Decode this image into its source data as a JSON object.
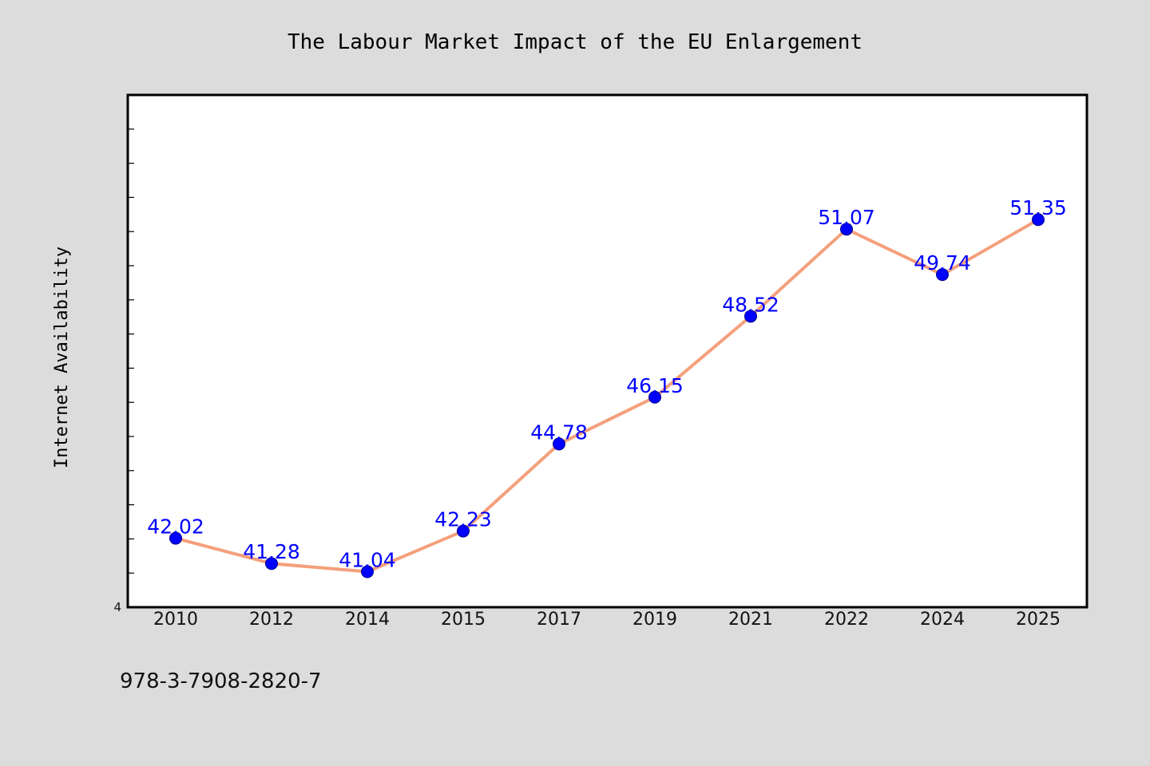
{
  "chart_data": {
    "type": "line",
    "title": "The Labour Market Impact of the EU Enlargement",
    "xlabel": "",
    "ylabel": "Internet Availability",
    "categories": [
      "2010",
      "2012",
      "2014",
      "2015",
      "2017",
      "2019",
      "2021",
      "2022",
      "2024",
      "2025"
    ],
    "series": [
      {
        "values": [
          42.02,
          41.28,
          41.04,
          42.23,
          44.78,
          46.15,
          48.52,
          51.07,
          49.74,
          51.35
        ]
      }
    ],
    "data_labels": [
      "42.02",
      "41.28",
      "41.04",
      "42.23",
      "44.78",
      "46.15",
      "48.52",
      "51.07",
      "49.74",
      "51.35"
    ],
    "ylim": [
      40.0,
      55.0
    ],
    "y_min_label": "4",
    "y_tick_labels": "hidden except bottom",
    "grid": false,
    "legend": "none",
    "colors": {
      "line": "#f4a07c",
      "marker": "#0000ff",
      "data_label": "#0000ff",
      "plot_background": "#ffffff",
      "figure_background": "#dcdcdc"
    }
  },
  "footer": {
    "isbn": "978-3-7908-2820-7"
  }
}
